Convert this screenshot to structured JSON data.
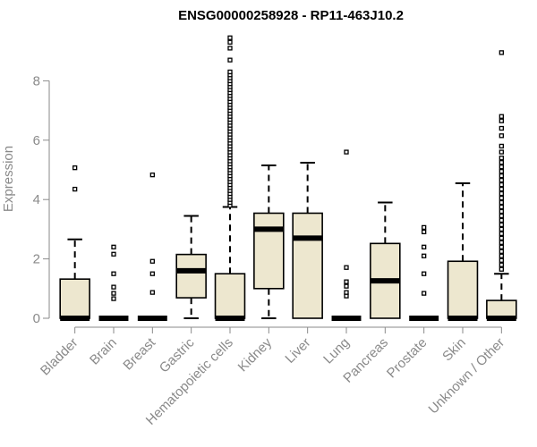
{
  "chart_data": {
    "type": "boxplot",
    "title": "ENSG00000258928 - RP11-463J10.2",
    "xlabel": "",
    "ylabel": "Expression",
    "ylim": [
      0,
      9.6
    ],
    "yticks": [
      0,
      2,
      4,
      6,
      8
    ],
    "colors": {
      "box_fill": "#ede7cf",
      "stroke": "#000000",
      "axis": "#8a8a8a"
    },
    "categories": [
      "Bladder",
      "Brain",
      "Breast",
      "Gastric",
      "Hematopoietic cells",
      "Kidney",
      "Liver",
      "Lung",
      "Pancreas",
      "Prostate",
      "Skin",
      "Unknown / Other"
    ],
    "boxes": [
      {
        "name": "Bladder",
        "q1": 0,
        "median": 0,
        "q3": 1.32,
        "whisker_low": 0,
        "whisker_high": 2.66,
        "outliers": [
          4.35,
          5.07
        ]
      },
      {
        "name": "Brain",
        "q1": 0,
        "median": 0,
        "q3": 0,
        "whisker_low": 0,
        "whisker_high": 0,
        "outliers": [
          0.66,
          0.84,
          1.05,
          1.5,
          2.16,
          2.4
        ]
      },
      {
        "name": "Breast",
        "q1": 0,
        "median": 0,
        "q3": 0,
        "whisker_low": 0,
        "whisker_high": 0,
        "outliers": [
          0.87,
          1.5,
          1.92,
          4.83
        ]
      },
      {
        "name": "Gastric",
        "q1": 0.69,
        "median": 1.6,
        "q3": 2.15,
        "whisker_low": 0,
        "whisker_high": 3.45,
        "outliers": []
      },
      {
        "name": "Hematopoietic cells",
        "q1": 0,
        "median": 0,
        "q3": 1.5,
        "whisker_low": 0,
        "whisker_high": 3.75,
        "outliers": [
          3.8,
          3.9,
          4.0,
          4.1,
          4.2,
          4.3,
          4.4,
          4.5,
          4.6,
          4.7,
          4.8,
          4.9,
          5.0,
          5.1,
          5.2,
          5.3,
          5.4,
          5.5,
          5.6,
          5.7,
          5.8,
          5.9,
          6.0,
          6.1,
          6.2,
          6.3,
          6.4,
          6.5,
          6.6,
          6.7,
          6.8,
          6.9,
          7.0,
          7.1,
          7.2,
          7.3,
          7.4,
          7.5,
          7.6,
          7.7,
          7.8,
          7.9,
          8.0,
          8.1,
          8.2,
          8.3,
          8.7,
          9.1,
          9.3,
          9.45
        ]
      },
      {
        "name": "Kidney",
        "q1": 1.0,
        "median": 3.0,
        "q3": 3.54,
        "whisker_low": 0,
        "whisker_high": 5.15,
        "outliers": []
      },
      {
        "name": "Liver",
        "q1": 0,
        "median": 2.7,
        "q3": 3.54,
        "whisker_low": 0,
        "whisker_high": 5.24,
        "outliers": []
      },
      {
        "name": "Lung",
        "q1": 0,
        "median": 0,
        "q3": 0,
        "whisker_low": 0,
        "whisker_high": 0,
        "outliers": [
          0.75,
          0.87,
          1.08,
          1.23,
          1.71,
          5.6
        ]
      },
      {
        "name": "Pancreas",
        "q1": 0,
        "median": 1.26,
        "q3": 2.52,
        "whisker_low": 0,
        "whisker_high": 3.9,
        "outliers": []
      },
      {
        "name": "Prostate",
        "q1": 0,
        "median": 0,
        "q3": 0,
        "whisker_low": 0,
        "whisker_high": 0,
        "outliers": [
          0.84,
          1.5,
          2.1,
          2.4,
          2.91,
          3.06
        ]
      },
      {
        "name": "Skin",
        "q1": 0,
        "median": 0,
        "q3": 1.92,
        "whisker_low": 0,
        "whisker_high": 4.55,
        "outliers": []
      },
      {
        "name": "Unknown / Other",
        "q1": 0,
        "median": 0,
        "q3": 0.6,
        "whisker_low": 0,
        "whisker_high": 1.5,
        "outliers": [
          1.65,
          1.8,
          1.95,
          2.1,
          2.25,
          2.4,
          2.55,
          2.7,
          2.85,
          3.0,
          3.15,
          3.3,
          3.45,
          3.6,
          3.75,
          3.9,
          4.05,
          4.2,
          4.35,
          4.5,
          4.65,
          4.8,
          4.95,
          5.1,
          5.25,
          5.4,
          5.6,
          5.8,
          6.15,
          6.4,
          6.65,
          6.8,
          8.95
        ]
      }
    ]
  }
}
